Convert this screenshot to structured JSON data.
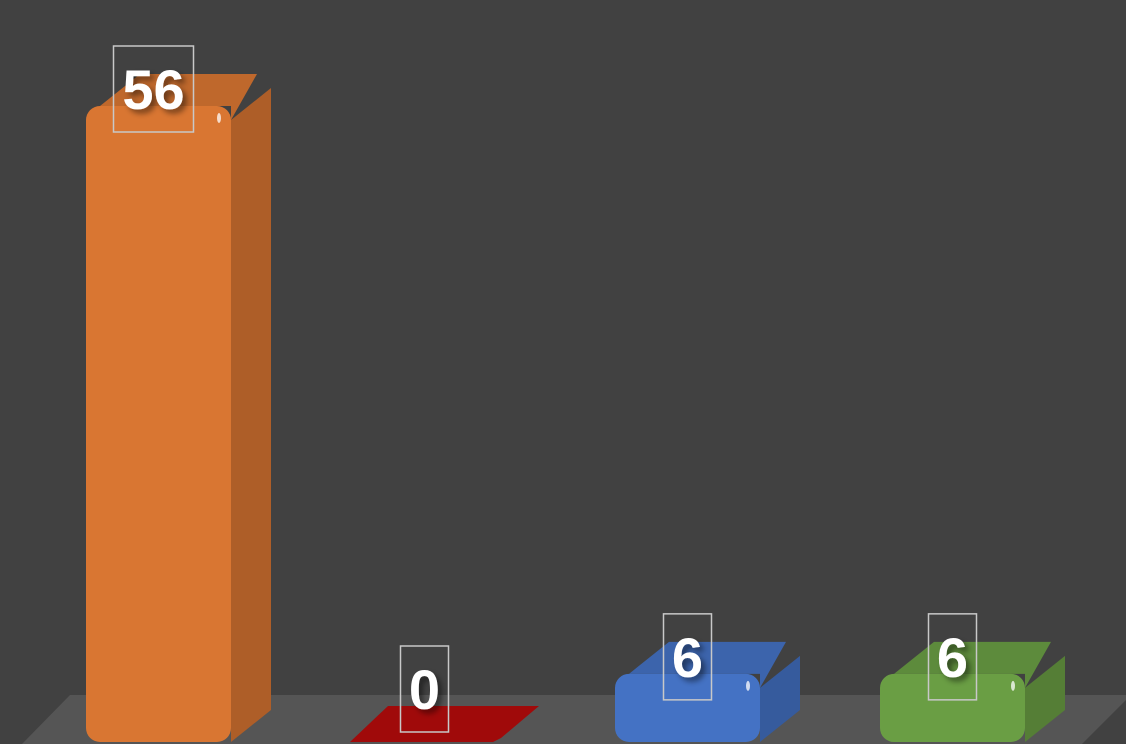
{
  "chart_data": {
    "type": "bar",
    "categories": [
      "",
      "",
      "",
      ""
    ],
    "values": [
      56,
      0,
      6,
      6
    ],
    "data_labels": [
      "56",
      "0",
      "6",
      "6"
    ],
    "colors": [
      "#d97632",
      "#a00a0a",
      "#4472c4",
      "#6a9e44"
    ],
    "ylim": [
      0,
      56
    ],
    "background": "#414141",
    "floor_color": "#555555",
    "title": "",
    "xlabel": "",
    "ylabel": "",
    "grid": false,
    "legend": "none"
  }
}
